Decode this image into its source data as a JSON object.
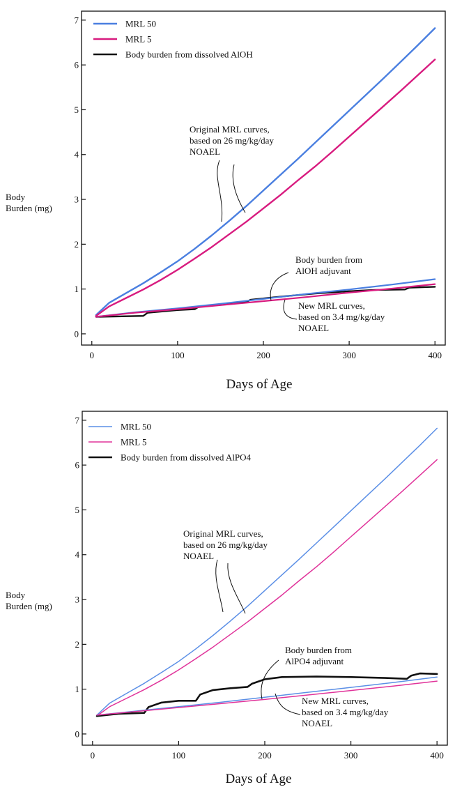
{
  "chart_data": [
    {
      "type": "line",
      "xlabel": "Days of Age",
      "ylabel": [
        "Body",
        "Burden (mg)"
      ],
      "xlim": [
        -12,
        412
      ],
      "ylim": [
        -0.25,
        7.2
      ],
      "xticks": [
        0,
        100,
        200,
        300,
        400
      ],
      "yticks": [
        0,
        1,
        2,
        3,
        4,
        5,
        6,
        7
      ],
      "legend_position": "top-left",
      "series": [
        {
          "name": "MRL 50",
          "color": "#4a7fe0",
          "x": [
            5,
            20,
            40,
            60,
            80,
            100,
            120,
            140,
            160,
            180,
            200,
            220,
            240,
            260,
            280,
            300,
            320,
            340,
            360,
            380,
            400
          ],
          "y": [
            0.42,
            0.69,
            0.91,
            1.13,
            1.37,
            1.62,
            1.9,
            2.2,
            2.52,
            2.85,
            3.2,
            3.55,
            3.9,
            4.26,
            4.62,
            4.98,
            5.34,
            5.7,
            6.07,
            6.44,
            6.82
          ]
        },
        {
          "name": "MRL 5",
          "color": "#d81b7f",
          "x": [
            5,
            20,
            40,
            60,
            80,
            100,
            120,
            140,
            160,
            180,
            200,
            220,
            240,
            260,
            280,
            300,
            320,
            340,
            360,
            380,
            400
          ],
          "y": [
            0.4,
            0.61,
            0.8,
            0.99,
            1.2,
            1.43,
            1.68,
            1.94,
            2.22,
            2.5,
            2.8,
            3.1,
            3.42,
            3.73,
            4.06,
            4.4,
            4.74,
            5.08,
            5.42,
            5.77,
            6.12
          ]
        },
        {
          "name": "Body burden from dissolved AlOH",
          "color": "#111111",
          "x": [
            5,
            30,
            60,
            65,
            100,
            120,
            125,
            150,
            180,
            185,
            220,
            260,
            300,
            330,
            365,
            370,
            400
          ],
          "y": [
            0.38,
            0.39,
            0.4,
            0.47,
            0.53,
            0.55,
            0.61,
            0.65,
            0.71,
            0.76,
            0.83,
            0.9,
            0.95,
            0.98,
            0.99,
            1.03,
            1.05
          ]
        },
        {
          "name": "",
          "color": "#4a7fe0",
          "x": [
            5,
            50,
            100,
            150,
            200,
            250,
            300,
            350,
            400
          ],
          "y": [
            0.38,
            0.48,
            0.57,
            0.67,
            0.78,
            0.89,
            0.99,
            1.1,
            1.22
          ]
        },
        {
          "name": "",
          "color": "#d81b7f",
          "x": [
            5,
            50,
            100,
            150,
            200,
            250,
            300,
            350,
            400
          ],
          "y": [
            0.38,
            0.47,
            0.55,
            0.64,
            0.73,
            0.82,
            0.92,
            1.01,
            1.11
          ]
        }
      ],
      "annotations": [
        {
          "lines": [
            "Original MRL curves,",
            "based on 26 mg/kg/day",
            "NOAEL"
          ]
        },
        {
          "lines": [
            "Body burden from",
            "AlOH adjuvant"
          ]
        },
        {
          "lines": [
            "New MRL curves,",
            "based on 3.4 mg/kg/day",
            "NOAEL"
          ]
        }
      ]
    },
    {
      "type": "line",
      "xlabel": "Days of Age",
      "ylabel": [
        "Body",
        "Burden (mg)"
      ],
      "xlim": [
        -12,
        412
      ],
      "ylim": [
        -0.25,
        7.2
      ],
      "xticks": [
        0,
        100,
        200,
        300,
        400
      ],
      "yticks": [
        0,
        1,
        2,
        3,
        4,
        5,
        6,
        7
      ],
      "legend_position": "top-left",
      "series": [
        {
          "name": "MRL 50",
          "color": "#5b8fe6",
          "x": [
            5,
            20,
            40,
            60,
            80,
            100,
            120,
            140,
            160,
            180,
            200,
            220,
            240,
            260,
            280,
            300,
            320,
            340,
            360,
            380,
            400
          ],
          "y": [
            0.42,
            0.69,
            0.91,
            1.13,
            1.37,
            1.62,
            1.9,
            2.2,
            2.52,
            2.85,
            3.2,
            3.55,
            3.9,
            4.26,
            4.62,
            4.98,
            5.34,
            5.7,
            6.07,
            6.44,
            6.82
          ]
        },
        {
          "name": "MRL 5",
          "color": "#e0339a",
          "x": [
            5,
            20,
            40,
            60,
            80,
            100,
            120,
            140,
            160,
            180,
            200,
            220,
            240,
            260,
            280,
            300,
            320,
            340,
            360,
            380,
            400
          ],
          "y": [
            0.4,
            0.61,
            0.8,
            0.99,
            1.2,
            1.43,
            1.68,
            1.94,
            2.22,
            2.5,
            2.8,
            3.1,
            3.42,
            3.73,
            4.06,
            4.4,
            4.74,
            5.08,
            5.42,
            5.77,
            6.12
          ]
        },
        {
          "name": "Body burden from dissolved AlPO4",
          "color": "#111111",
          "x": [
            5,
            30,
            60,
            65,
            80,
            100,
            120,
            125,
            140,
            160,
            180,
            185,
            200,
            220,
            260,
            300,
            340,
            365,
            370,
            380,
            400
          ],
          "y": [
            0.4,
            0.45,
            0.47,
            0.6,
            0.7,
            0.74,
            0.74,
            0.88,
            0.98,
            1.02,
            1.05,
            1.12,
            1.22,
            1.27,
            1.28,
            1.27,
            1.25,
            1.23,
            1.3,
            1.35,
            1.34
          ]
        },
        {
          "name": "",
          "color": "#5b8fe6",
          "x": [
            5,
            50,
            100,
            150,
            200,
            250,
            300,
            350,
            400
          ],
          "y": [
            0.42,
            0.51,
            0.61,
            0.71,
            0.82,
            0.93,
            1.04,
            1.15,
            1.27
          ]
        },
        {
          "name": "",
          "color": "#e0339a",
          "x": [
            5,
            50,
            100,
            150,
            200,
            250,
            300,
            350,
            400
          ],
          "y": [
            0.42,
            0.5,
            0.59,
            0.68,
            0.77,
            0.87,
            0.97,
            1.07,
            1.18
          ]
        }
      ],
      "annotations": [
        {
          "lines": [
            "Original MRL curves,",
            "based on 26 mg/kg/day",
            "NOAEL"
          ]
        },
        {
          "lines": [
            "Body burden from",
            "AlPO4 adjuvant"
          ]
        },
        {
          "lines": [
            "New MRL curves,",
            "based on 3.4 mg/kg/day",
            "NOAEL"
          ]
        }
      ]
    }
  ]
}
